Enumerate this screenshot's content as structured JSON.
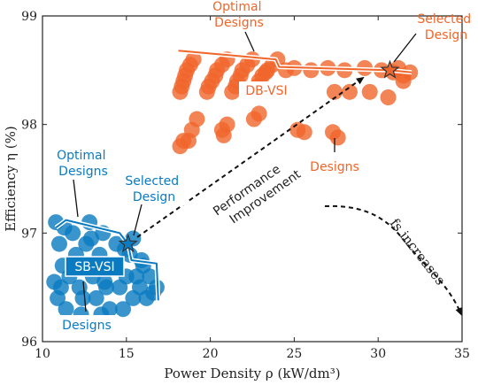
{
  "chart_data": {
    "type": "scatter",
    "xlabel": "Power Density ρ (kW/dm³)",
    "ylabel": "Efficiency η (%)",
    "xlim": [
      10,
      35
    ],
    "ylim": [
      96,
      99
    ],
    "xticks": [
      "10",
      "15",
      "20",
      "25",
      "30",
      "35"
    ],
    "yticks": [
      "96",
      "97",
      "98",
      "99"
    ],
    "grid": false,
    "series": [
      {
        "name": "DB-VSI",
        "color": "#f0652a",
        "points": [
          [
            18.2,
            98.3
          ],
          [
            18.4,
            98.4
          ],
          [
            18.6,
            98.5
          ],
          [
            18.8,
            98.55
          ],
          [
            19.0,
            98.6
          ],
          [
            18.3,
            98.35
          ],
          [
            18.5,
            98.45
          ],
          [
            19.8,
            98.3
          ],
          [
            20.1,
            98.4
          ],
          [
            20.4,
            98.5
          ],
          [
            20.7,
            98.55
          ],
          [
            21.0,
            98.6
          ],
          [
            19.9,
            98.35
          ],
          [
            20.3,
            98.45
          ],
          [
            21.3,
            98.3
          ],
          [
            21.6,
            98.4
          ],
          [
            21.9,
            98.5
          ],
          [
            22.2,
            98.55
          ],
          [
            22.5,
            98.6
          ],
          [
            21.5,
            98.35
          ],
          [
            21.8,
            98.45
          ],
          [
            22.8,
            98.35
          ],
          [
            23.1,
            98.45
          ],
          [
            23.4,
            98.5
          ],
          [
            23.7,
            98.55
          ],
          [
            24.0,
            98.6
          ],
          [
            22.9,
            98.4
          ],
          [
            23.3,
            98.48
          ],
          [
            24.5,
            98.5
          ],
          [
            25.0,
            98.52
          ],
          [
            26.0,
            98.5
          ],
          [
            27.0,
            98.52
          ],
          [
            28.0,
            98.5
          ],
          [
            29.2,
            98.52
          ],
          [
            30.2,
            98.5
          ],
          [
            30.9,
            98.48
          ],
          [
            31.5,
            98.45
          ],
          [
            31.9,
            98.48
          ],
          [
            31.2,
            98.52
          ],
          [
            18.9,
            97.95
          ],
          [
            19.2,
            98.05
          ],
          [
            18.7,
            97.85
          ],
          [
            20.8,
            97.9
          ],
          [
            21.0,
            98.0
          ],
          [
            20.7,
            97.95
          ],
          [
            22.6,
            98.05
          ],
          [
            22.9,
            98.1
          ],
          [
            18.2,
            97.8
          ],
          [
            18.4,
            97.85
          ],
          [
            25.6,
            97.93
          ],
          [
            25.2,
            97.95
          ],
          [
            27.4,
            98.3
          ],
          [
            28.3,
            98.3
          ],
          [
            27.3,
            97.93
          ],
          [
            27.6,
            97.88
          ],
          [
            29.5,
            98.3
          ],
          [
            30.6,
            98.25
          ],
          [
            31.5,
            98.4
          ]
        ]
      },
      {
        "name": "SB-VSI",
        "color": "#0a7bc1",
        "points": [
          [
            10.8,
            97.1
          ],
          [
            11.0,
            96.9
          ],
          [
            11.2,
            96.7
          ],
          [
            11.1,
            96.5
          ],
          [
            10.9,
            96.4
          ],
          [
            11.4,
            96.3
          ],
          [
            11.6,
            96.6
          ],
          [
            11.8,
            97.0
          ],
          [
            12.0,
            96.8
          ],
          [
            12.2,
            96.5
          ],
          [
            12.4,
            96.4
          ],
          [
            12.6,
            96.9
          ],
          [
            12.8,
            97.1
          ],
          [
            13.0,
            96.6
          ],
          [
            13.2,
            96.4
          ],
          [
            13.4,
            96.8
          ],
          [
            13.6,
            97.0
          ],
          [
            13.8,
            96.5
          ],
          [
            14.0,
            96.3
          ],
          [
            14.2,
            96.7
          ],
          [
            14.4,
            96.9
          ],
          [
            14.6,
            96.5
          ],
          [
            14.8,
            96.3
          ],
          [
            15.0,
            96.6
          ],
          [
            15.2,
            96.8
          ],
          [
            15.4,
            96.4
          ],
          [
            15.6,
            96.6
          ],
          [
            15.8,
            96.5
          ],
          [
            16.0,
            96.7
          ],
          [
            16.2,
            96.4
          ],
          [
            16.4,
            96.6
          ],
          [
            16.6,
            96.45
          ],
          [
            16.8,
            96.5
          ],
          [
            12.3,
            96.25
          ],
          [
            13.5,
            96.25
          ],
          [
            11.3,
            97.05
          ],
          [
            12.9,
            96.95
          ],
          [
            14.9,
            96.85
          ],
          [
            15.9,
            96.75
          ],
          [
            10.7,
            96.55
          ],
          [
            13.7,
            96.55
          ],
          [
            15.4,
            96.95
          ]
        ]
      }
    ],
    "optimal_designs": {
      "DB-VSI": [
        [
          18.1,
          98.68
        ],
        [
          23.9,
          98.6
        ],
        [
          24.1,
          98.53
        ],
        [
          30.7,
          98.5
        ],
        [
          32.0,
          98.48
        ]
      ],
      "SB-VSI": [
        [
          10.8,
          97.05
        ],
        [
          11.4,
          97.12
        ],
        [
          14.6,
          97.0
        ],
        [
          15.1,
          96.9
        ],
        [
          15.3,
          96.75
        ],
        [
          16.8,
          96.72
        ],
        [
          16.9,
          96.38
        ]
      ]
    },
    "selected": [
      {
        "series": "DB-VSI",
        "x": 30.7,
        "y": 98.5
      },
      {
        "series": "SB-VSI",
        "x": 15.1,
        "y": 96.9
      }
    ],
    "annotations": {
      "db_optimal": [
        "Optimal",
        "Designs"
      ],
      "db_selected": [
        "Selected",
        "Design"
      ],
      "db_label": "DB-VSI",
      "db_designs": "Designs",
      "sb_optimal": [
        "Optimal",
        "Designs"
      ],
      "sb_selected": [
        "Selected",
        "Design"
      ],
      "sb_label": "SB-VSI",
      "sb_designs": "Designs",
      "performance": [
        "Performance",
        "Improvement"
      ],
      "fs_increases": "fs increases"
    }
  }
}
